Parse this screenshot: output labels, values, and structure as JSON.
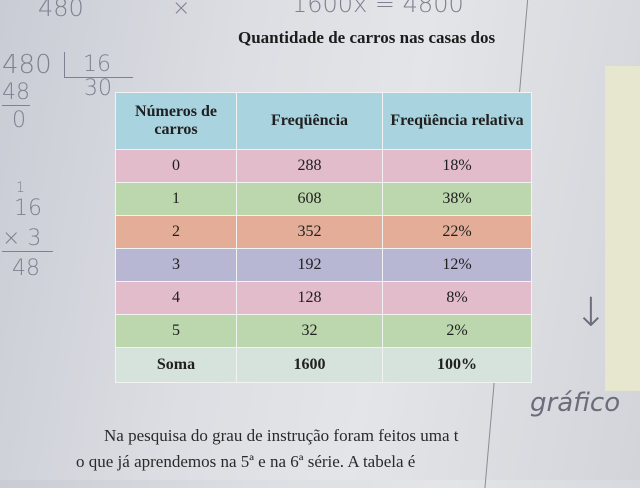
{
  "title": "Quantidade de carros nas casas dos",
  "table": {
    "headers": [
      "Números de carros",
      "Freqüência",
      "Freqüência relativa"
    ],
    "rows": [
      [
        "0",
        "288",
        "18%"
      ],
      [
        "1",
        "608",
        "38%"
      ],
      [
        "2",
        "352",
        "22%"
      ],
      [
        "3",
        "192",
        "12%"
      ],
      [
        "4",
        "128",
        "8%"
      ],
      [
        "5",
        "32",
        "2%"
      ]
    ],
    "total": [
      "Soma",
      "1600",
      "100%"
    ]
  },
  "paragraph": {
    "line1": "Na pesquisa do grau de instrução foram feitos uma t",
    "line2": "o que já aprendemos na 5ª e na 6ª série. A tabela é"
  },
  "handwriting": {
    "top_number": "480",
    "times_mark": "×",
    "equation": "1600x = 4800",
    "division": "480",
    "divisor": "16",
    "quotient": "30",
    "sub": "48",
    "remainder": "0",
    "carry": "1",
    "mult_a": "16",
    "mult_b": "× 3",
    "mult_result": "48",
    "note": "gráfico"
  }
}
